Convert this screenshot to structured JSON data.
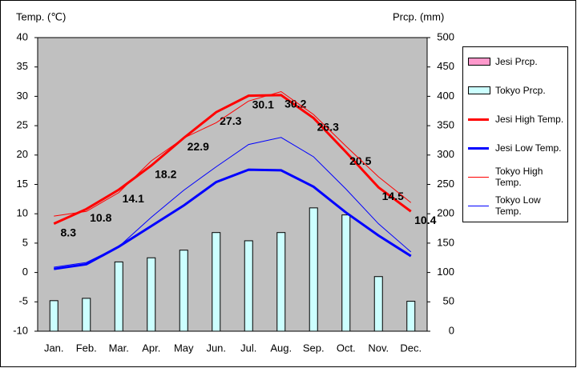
{
  "chart_data": {
    "type": "line",
    "y_label": "Temp. (℃)",
    "y2_label": "Prcp. (mm)",
    "categories": [
      "Jan.",
      "Feb.",
      "Mar.",
      "Apr.",
      "May",
      "Jun.",
      "Jul.",
      "Aug.",
      "Sep.",
      "Oct.",
      "Nov.",
      "Dec."
    ],
    "ylim": [
      -10,
      40
    ],
    "yticks": [
      -10,
      -5,
      0,
      5,
      10,
      15,
      20,
      25,
      30,
      35,
      40
    ],
    "y2lim": [
      0,
      500
    ],
    "y2ticks": [
      0,
      50,
      100,
      150,
      200,
      250,
      300,
      350,
      400,
      450,
      500
    ],
    "series": [
      {
        "name": "Jesi Prcp.",
        "type": "bar",
        "axis": "y2",
        "color": "#ff99cc",
        "values": [
          null,
          null,
          null,
          null,
          null,
          null,
          null,
          null,
          null,
          null,
          null,
          null
        ]
      },
      {
        "name": "Tokyo Prcp.",
        "type": "bar",
        "axis": "y2",
        "color": "#ccffff",
        "values": [
          52,
          56,
          118,
          125,
          138,
          168,
          154,
          168,
          210,
          198,
          93,
          51
        ]
      },
      {
        "name": "Jesi High Temp.",
        "type": "line",
        "width": 3,
        "color": "#ff0000",
        "labels": true,
        "values": [
          8.3,
          10.8,
          14.1,
          18.2,
          22.9,
          27.3,
          30.1,
          30.2,
          26.3,
          20.5,
          14.5,
          10.4
        ]
      },
      {
        "name": "Jesi Low Temp.",
        "type": "line",
        "width": 3,
        "color": "#0000ff",
        "values": [
          0.6,
          1.4,
          4.4,
          7.9,
          11.4,
          15.4,
          17.5,
          17.4,
          14.6,
          10.2,
          6.3,
          2.8
        ]
      },
      {
        "name": "Tokyo High Temp.",
        "type": "line",
        "width": 1,
        "color": "#ff0000",
        "values": [
          9.6,
          10.4,
          13.6,
          19.0,
          22.9,
          25.5,
          29.2,
          30.8,
          26.9,
          21.5,
          16.3,
          11.9
        ]
      },
      {
        "name": "Tokyo Low Temp.",
        "type": "line",
        "width": 1,
        "color": "#0000ff",
        "values": [
          0.9,
          1.7,
          4.4,
          9.4,
          14.0,
          18.0,
          21.8,
          23.0,
          19.7,
          14.2,
          8.3,
          3.5
        ]
      }
    ]
  }
}
